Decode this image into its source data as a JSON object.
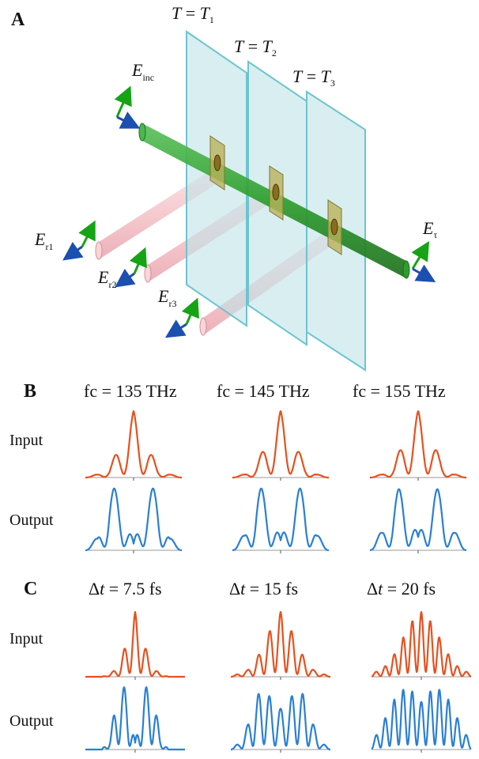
{
  "panel_a": {
    "letter": "A",
    "planes": [
      {
        "label_T": "T",
        "label_eq": " = ",
        "label_rhs": "T",
        "sub": "1"
      },
      {
        "label_T": "T",
        "label_eq": " = ",
        "label_rhs": "T",
        "sub": "2"
      },
      {
        "label_T": "T",
        "label_eq": " = ",
        "label_rhs": "T",
        "sub": "3"
      }
    ],
    "incident": {
      "base": "E",
      "sub": "inc"
    },
    "transmitted": {
      "base": "E",
      "sub": "τ"
    },
    "reflected": [
      {
        "base": "E",
        "sub": "r1"
      },
      {
        "base": "E",
        "sub": "r2"
      },
      {
        "base": "E",
        "sub": "r3"
      }
    ],
    "colors": {
      "plane_fill": "#bfe3e8",
      "plane_edge": "#6cc4cf",
      "beam_green": "#2e9e2e",
      "beam_pink": "#f4c2c8",
      "axis_green": "#16a316",
      "axis_blue": "#1b4fb0",
      "aperture": "#b9b25a"
    }
  },
  "panel_b": {
    "letter": "B",
    "row_labels": [
      "Input",
      "Output"
    ],
    "titles": [
      "fc = 135 THz",
      "fc = 145 THz",
      "fc = 155 THz"
    ]
  },
  "panel_c": {
    "letter": "C",
    "row_labels": [
      "Input",
      "Output"
    ],
    "titles": [
      {
        "delta": "Δ",
        "t": "t",
        "rest": " = 7.5 fs"
      },
      {
        "delta": "Δ",
        "t": "t",
        "rest": " = 15 fs"
      },
      {
        "delta": "Δ",
        "t": "t",
        "rest": " =  20 fs"
      }
    ]
  },
  "colors": {
    "input": "#e8501e",
    "output": "#2a7fd4"
  },
  "chart_data": [
    {
      "type": "line",
      "panel": "B",
      "x": [
        -4,
        -3,
        -2,
        -1,
        0,
        1,
        2,
        3,
        4
      ],
      "series": [
        {
          "row": "Input",
          "column": "fc = 135 THz",
          "values": [
            0,
            0.05,
            0.15,
            0.55,
            1.0,
            0.55,
            0.15,
            0.05,
            0
          ]
        },
        {
          "row": "Input",
          "column": "fc = 145 THz",
          "values": [
            0,
            0.05,
            0.2,
            0.6,
            1.0,
            0.6,
            0.2,
            0.05,
            0
          ]
        },
        {
          "row": "Input",
          "column": "fc = 155 THz",
          "values": [
            0,
            0.05,
            0.2,
            0.65,
            1.0,
            0.65,
            0.2,
            0.05,
            0
          ]
        },
        {
          "row": "Output",
          "column": "fc = 135 THz",
          "values": [
            0,
            0.2,
            0.95,
            0.9,
            0.1,
            0.9,
            0.95,
            0.2,
            0
          ]
        },
        {
          "row": "Output",
          "column": "fc = 145 THz",
          "values": [
            0,
            0.25,
            0.95,
            0.9,
            0.15,
            0.9,
            0.95,
            0.25,
            0
          ]
        },
        {
          "row": "Output",
          "column": "fc = 155 THz",
          "values": [
            0,
            0.3,
            0.9,
            0.95,
            0.2,
            0.95,
            0.9,
            0.3,
            0
          ]
        }
      ]
    },
    {
      "type": "line",
      "panel": "C",
      "x": [
        -6,
        -5,
        -4,
        -3,
        -2,
        -1,
        0,
        1,
        2,
        3,
        4,
        5,
        6
      ],
      "series": [
        {
          "row": "Input",
          "column": "Δt = 7.5 fs",
          "values": [
            0,
            0,
            0,
            0.05,
            0.15,
            0.55,
            1.0,
            0.55,
            0.15,
            0.05,
            0,
            0,
            0
          ]
        },
        {
          "row": "Input",
          "column": "Δt = 15 fs",
          "values": [
            0,
            0.05,
            0.1,
            0.25,
            0.5,
            0.8,
            1.0,
            0.8,
            0.5,
            0.25,
            0.1,
            0.05,
            0
          ]
        },
        {
          "row": "Input",
          "column": "Δt = 20 fs",
          "values": [
            0.05,
            0.1,
            0.2,
            0.4,
            0.65,
            0.88,
            1.0,
            0.88,
            0.65,
            0.4,
            0.2,
            0.1,
            0.05
          ]
        },
        {
          "row": "Output",
          "column": "Δt = 7.5 fs",
          "values": [
            0,
            0,
            0,
            0.2,
            0.95,
            0.9,
            0.1,
            0.9,
            0.95,
            0.2,
            0,
            0,
            0
          ]
        },
        {
          "row": "Output",
          "column": "Δt = 15 fs",
          "values": [
            0,
            0.1,
            0.35,
            0.75,
            0.95,
            0.7,
            0.6,
            0.7,
            0.95,
            0.75,
            0.35,
            0.1,
            0
          ]
        },
        {
          "row": "Output",
          "column": "Δt = 20 fs",
          "values": [
            0.1,
            0.3,
            0.55,
            0.8,
            0.9,
            0.85,
            0.7,
            0.85,
            0.9,
            0.8,
            0.55,
            0.3,
            0.1
          ]
        }
      ]
    }
  ]
}
